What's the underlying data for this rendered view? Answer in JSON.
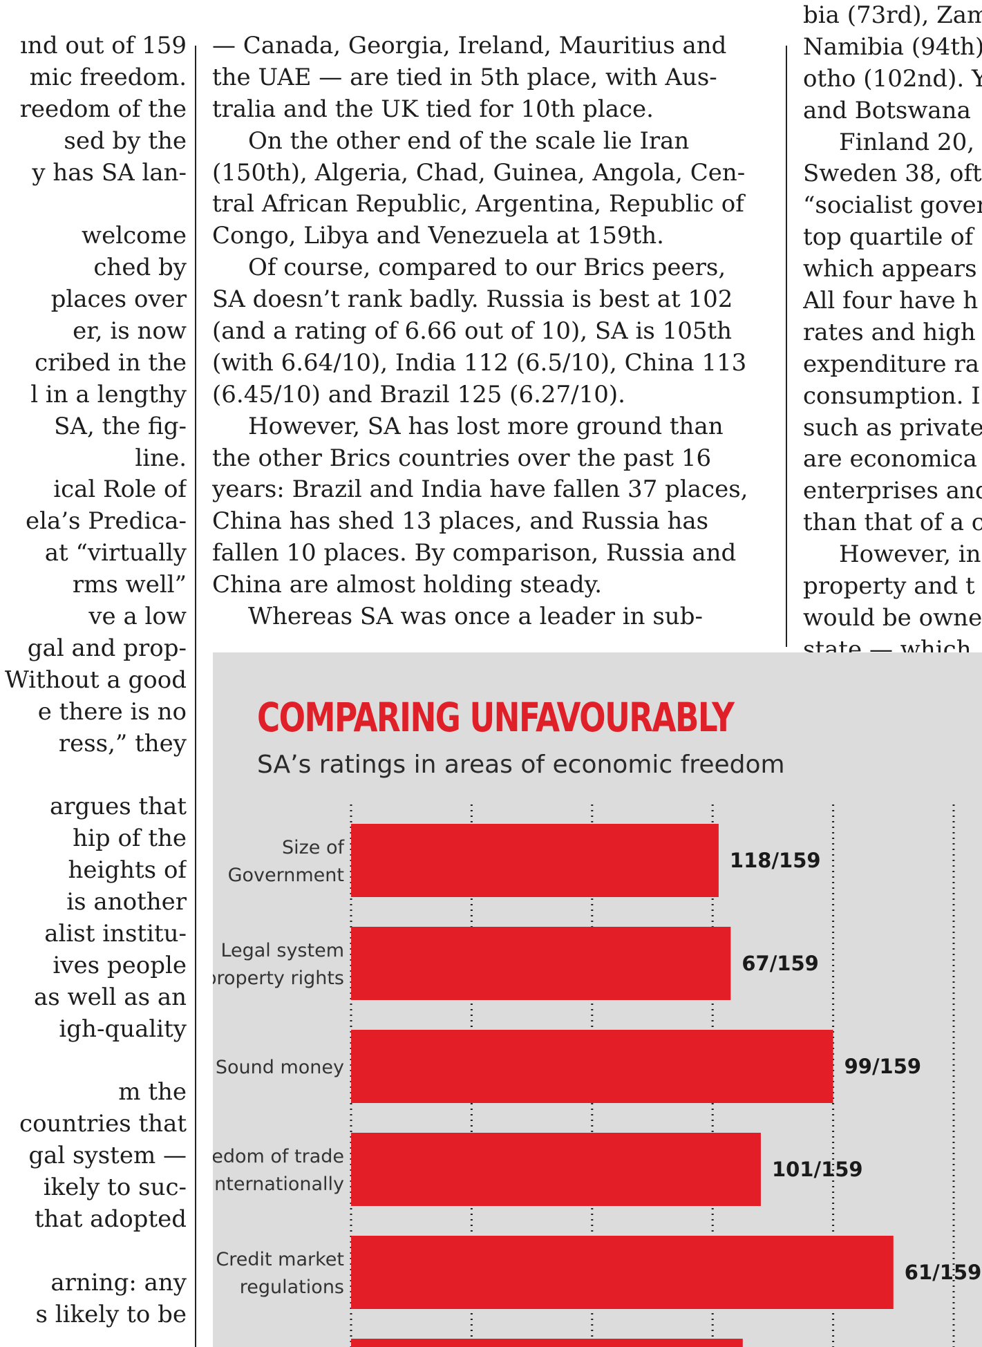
{
  "article": {
    "left_column": [
      {
        "text": "ınd out of 159",
        "indent": false
      },
      {
        "text": "mic freedom.",
        "indent": false
      },
      {
        "text": "reedom of the",
        "indent": false
      },
      {
        "text": "sed by the",
        "indent": false
      },
      {
        "text": "y has SA lan-",
        "indent": false
      },
      {
        "text": "",
        "indent": false
      },
      {
        "text": "welcome",
        "indent": false
      },
      {
        "text": "ched by",
        "indent": false
      },
      {
        "text": "places over",
        "indent": false
      },
      {
        "text": "er, is now",
        "indent": false
      },
      {
        "text": "cribed in the",
        "indent": false
      },
      {
        "text": "l in a lengthy",
        "indent": false
      },
      {
        "text": "SA, the fig-",
        "indent": false
      },
      {
        "text": "line.",
        "indent": false
      },
      {
        "text": "ical Role of",
        "indent": false
      },
      {
        "text": "ela’s Predica-",
        "indent": false
      },
      {
        "text": "at “virtually",
        "indent": false
      },
      {
        "text": "rms well”",
        "indent": false
      },
      {
        "text": "ve a low",
        "indent": false
      },
      {
        "text": "gal and prop-",
        "indent": false
      },
      {
        "text": "Without a good",
        "indent": false
      },
      {
        "text": "e there is no",
        "indent": false
      },
      {
        "text": "ress,” they",
        "indent": false
      },
      {
        "text": "",
        "indent": false
      },
      {
        "text": "argues that",
        "indent": false
      },
      {
        "text": "hip of the",
        "indent": false
      },
      {
        "text": "heights of",
        "indent": false
      },
      {
        "text": "is another",
        "indent": false
      },
      {
        "text": "alist institu-",
        "indent": false
      },
      {
        "text": "ives people",
        "indent": false
      },
      {
        "text": "as well as an",
        "indent": false
      },
      {
        "text": "igh-quality",
        "indent": false
      },
      {
        "text": "",
        "indent": false
      },
      {
        "text": "m the",
        "indent": false
      },
      {
        "text": "countries that",
        "indent": false
      },
      {
        "text": "gal system —",
        "indent": false
      },
      {
        "text": "ikely to suc-",
        "indent": false
      },
      {
        "text": "that adopted",
        "indent": false
      },
      {
        "text": "",
        "indent": false
      },
      {
        "text": "arning: any",
        "indent": false
      },
      {
        "text": "s likely to be",
        "indent": false
      }
    ],
    "middle_column": [
      {
        "text": "— Canada, Georgia, Ireland, Mauritius and",
        "indent": false
      },
      {
        "text": "the UAE — are tied in 5th place, with Aus-",
        "indent": false
      },
      {
        "text": "tralia and the UK tied for 10th place.",
        "indent": false
      },
      {
        "text": "On the other end of the scale lie Iran",
        "indent": true
      },
      {
        "text": "(150th), Algeria, Chad, Guinea, Angola, Cen-",
        "indent": false
      },
      {
        "text": "tral African Republic, Argentina, Republic of",
        "indent": false
      },
      {
        "text": "Congo, Libya and Venezuela at 159th.",
        "indent": false
      },
      {
        "text": "Of course, compared to our Brics peers,",
        "indent": true
      },
      {
        "text": "SA doesn’t rank badly. Russia is best at 102",
        "indent": false
      },
      {
        "text": "(and a rating of 6.66 out of 10), SA is 105th",
        "indent": false
      },
      {
        "text": "(with 6.64/10), India 112 (6.5/10), China 113",
        "indent": false
      },
      {
        "text": "(6.45/10) and Brazil 125 (6.27/10).",
        "indent": false
      },
      {
        "text": "However, SA has lost more ground than",
        "indent": true
      },
      {
        "text": "the other Brics countries over the past 16",
        "indent": false
      },
      {
        "text": "years: Brazil and India have fallen 37 places,",
        "indent": false
      },
      {
        "text": "China has shed 13 places, and Russia has",
        "indent": false
      },
      {
        "text": "fallen 10 places. By comparison, Russia and",
        "indent": false
      },
      {
        "text": "China are almost holding steady.",
        "indent": false
      },
      {
        "text": "Whereas SA was once a leader in sub-",
        "indent": true
      }
    ],
    "right_column": [
      {
        "text": "bia (73rd), Zam",
        "indent": false
      },
      {
        "text": "Namibia (94th)",
        "indent": false
      },
      {
        "text": "otho (102nd). Y",
        "indent": false
      },
      {
        "text": "and Botswana",
        "indent": false
      },
      {
        "text": "Finland 20,",
        "indent": true
      },
      {
        "text": "Sweden 38, oft",
        "indent": false
      },
      {
        "text": "“socialist gover",
        "indent": false
      },
      {
        "text": "top quartile of",
        "indent": false
      },
      {
        "text": "which appears",
        "indent": false
      },
      {
        "text": "All four have h",
        "indent": false
      },
      {
        "text": "rates and high",
        "indent": false
      },
      {
        "text": "expenditure ra",
        "indent": false
      },
      {
        "text": "consumption. I",
        "indent": false
      },
      {
        "text": "such as private",
        "indent": false
      },
      {
        "text": "are economica",
        "indent": false
      },
      {
        "text": "enterprises and",
        "indent": false
      },
      {
        "text": "than that of a c",
        "indent": false
      },
      {
        "text": "However, in",
        "indent": true
      },
      {
        "text": "property and t",
        "indent": false
      },
      {
        "text": "would be owne",
        "indent": false
      },
      {
        "text": "state — which",
        "indent": false
      }
    ]
  },
  "chart_data": {
    "type": "bar",
    "orientation": "horizontal",
    "title": "COMPARING UNFAVOURABLY",
    "subtitle": "SA’s ratings in areas of economic freedom",
    "categories": [
      [
        "Size of",
        "Government"
      ],
      [
        "Legal system",
        "& property rights"
      ],
      [
        "Sound money"
      ],
      [
        "Freedom of trade",
        "internationally"
      ],
      [
        "Credit market",
        "regulations"
      ],
      [
        ""
      ]
    ],
    "values": [
      6.1,
      6.3,
      8.0,
      6.8,
      9.0,
      6.5
    ],
    "value_unit": "rating out of 10",
    "xlim": [
      0,
      10
    ],
    "x_gridlines": [
      0,
      2,
      4,
      6,
      8,
      10
    ],
    "data_labels": [
      "118/159",
      "67/159",
      "99/159",
      "101/159",
      "61/159",
      ""
    ],
    "grid": true,
    "bar_color": "#e31e26",
    "background_color": "#dcdcdc",
    "title_color": "#e02029"
  }
}
